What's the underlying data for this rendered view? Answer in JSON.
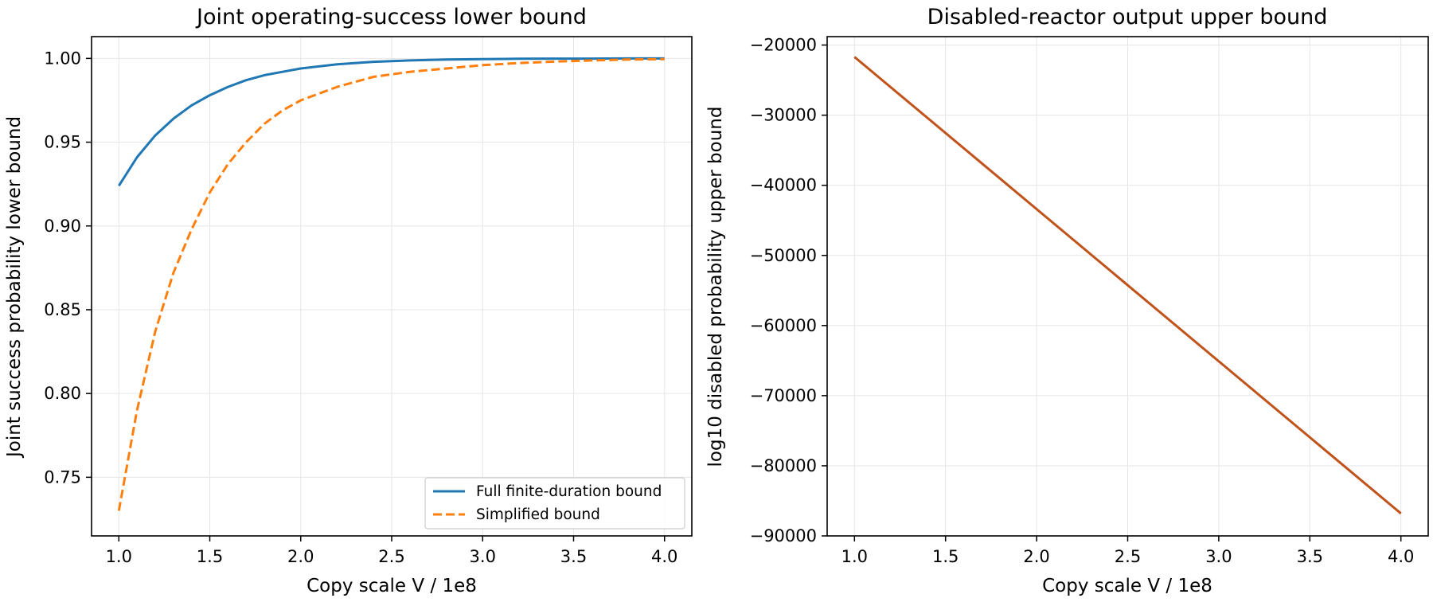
{
  "chart_data": [
    {
      "type": "line",
      "title": "Joint operating-success lower bound",
      "xlabel": "Copy scale V / 1e8",
      "ylabel": "Joint success probability lower bound",
      "xlim": [
        0.85,
        4.15
      ],
      "ylim": [
        0.715,
        1.013
      ],
      "xticks": [
        1.0,
        1.5,
        2.0,
        2.5,
        3.0,
        3.5,
        4.0
      ],
      "xtick_labels": [
        "1.0",
        "1.5",
        "2.0",
        "2.5",
        "3.0",
        "3.5",
        "4.0"
      ],
      "yticks": [
        0.75,
        0.8,
        0.85,
        0.9,
        0.95,
        1.0
      ],
      "ytick_labels": [
        "0.75",
        "0.80",
        "0.85",
        "0.90",
        "0.95",
        "1.00"
      ],
      "grid": true,
      "legend": "lower-right",
      "series": [
        {
          "name": "Full finite-duration bound",
          "color": "#1f77b4",
          "style": "solid",
          "x": [
            1.0,
            1.1,
            1.2,
            1.3,
            1.4,
            1.5,
            1.6,
            1.7,
            1.8,
            1.9,
            2.0,
            2.2,
            2.4,
            2.6,
            2.8,
            3.0,
            3.2,
            3.4,
            3.6,
            3.8,
            4.0
          ],
          "y": [
            0.924,
            0.941,
            0.954,
            0.964,
            0.972,
            0.978,
            0.983,
            0.987,
            0.99,
            0.992,
            0.994,
            0.9965,
            0.998,
            0.9988,
            0.9993,
            0.9996,
            0.9998,
            0.9999,
            0.9999,
            1.0,
            1.0
          ]
        },
        {
          "name": "Simplified bound",
          "color": "#ff7f0e",
          "style": "dashed",
          "x": [
            1.0,
            1.1,
            1.2,
            1.3,
            1.4,
            1.5,
            1.6,
            1.7,
            1.8,
            1.9,
            2.0,
            2.2,
            2.4,
            2.6,
            2.8,
            3.0,
            3.2,
            3.4,
            3.6,
            3.8,
            4.0
          ],
          "y": [
            0.73,
            0.79,
            0.837,
            0.872,
            0.898,
            0.92,
            0.937,
            0.95,
            0.961,
            0.969,
            0.975,
            0.983,
            0.989,
            0.992,
            0.994,
            0.996,
            0.9972,
            0.9981,
            0.9988,
            0.9993,
            0.9996
          ]
        }
      ]
    },
    {
      "type": "line",
      "title": "Disabled-reactor output upper bound",
      "xlabel": "Copy scale V / 1e8",
      "ylabel": "log10 disabled probability upper bound",
      "xlim": [
        0.85,
        4.15
      ],
      "ylim": [
        -90000,
        -18800
      ],
      "xticks": [
        1.0,
        1.5,
        2.0,
        2.5,
        3.0,
        3.5,
        4.0
      ],
      "xtick_labels": [
        "1.0",
        "1.5",
        "2.0",
        "2.5",
        "3.0",
        "3.5",
        "4.0"
      ],
      "yticks": [
        -90000,
        -80000,
        -70000,
        -60000,
        -50000,
        -40000,
        -30000,
        -20000
      ],
      "ytick_labels": [
        "−90000",
        "−80000",
        "−70000",
        "−60000",
        "−50000",
        "−40000",
        "−30000",
        "−20000"
      ],
      "grid": true,
      "series": [
        {
          "color": "#c0521a",
          "style": "solid",
          "x": [
            1.0,
            4.0
          ],
          "y": [
            -21700,
            -86800
          ]
        }
      ]
    }
  ]
}
